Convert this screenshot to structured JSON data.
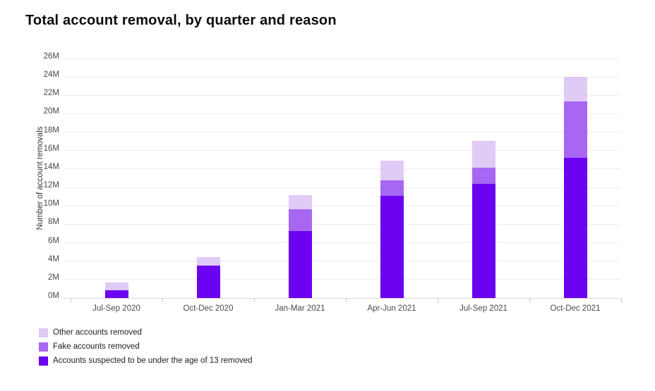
{
  "title": "Total account removal, by quarter and reason",
  "chart_data": {
    "type": "bar",
    "stacked": true,
    "title": "Total account removal, by quarter and reason",
    "xlabel": "",
    "ylabel": "Number of account removals",
    "unit": "millions of accounts",
    "ylim": [
      0,
      26
    ],
    "ytick_step": 2,
    "ytick_suffix": "M",
    "grid": true,
    "legend_position": "bottom-left",
    "categories": [
      "Jul-Sep 2020",
      "Oct-Dec 2020",
      "Jan-Mar 2021",
      "Apr-Jun 2021",
      "Jul-Sep 2021",
      "Oct-Dec 2021"
    ],
    "series": [
      {
        "name": "Accounts suspected to be under the age of 13 removed",
        "color": "#6b01f0",
        "values": [
          0.85,
          3.5,
          7.25,
          11.1,
          12.4,
          15.2
        ]
      },
      {
        "name": "Fake accounts removed",
        "color": "#a767f2",
        "values": [
          0,
          0,
          2.35,
          1.7,
          1.75,
          6.1
        ]
      },
      {
        "name": "Other accounts removed",
        "color": "#dfcbf6",
        "values": [
          0.8,
          0.9,
          1.55,
          2.1,
          2.9,
          2.7
        ]
      }
    ],
    "stack_order_note": "series listed bottom-to-top; legend shown top-to-bottom reversed",
    "totals": [
      1.65,
      4.4,
      11.15,
      14.9,
      17.05,
      24.0
    ]
  },
  "colors": {
    "background": "#ffffff",
    "title_text": "#0b0b0b",
    "axis_text": "#4a4a4a",
    "gridline": "#ececec",
    "axis_line": "#d7d7d7"
  }
}
